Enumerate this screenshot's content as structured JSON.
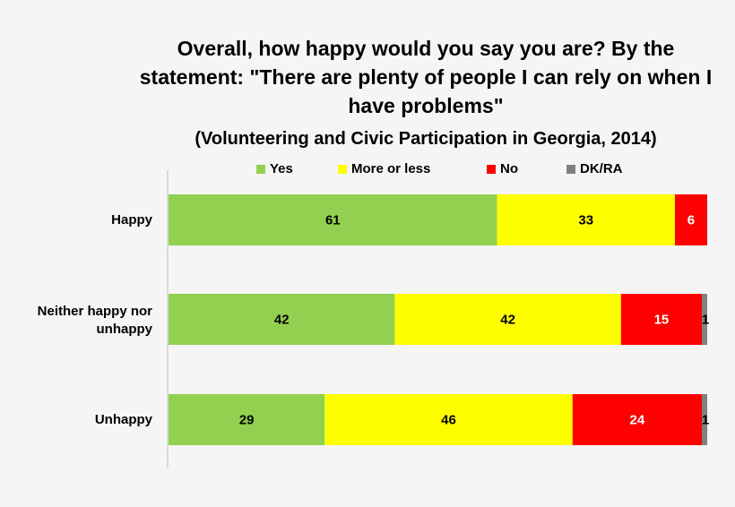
{
  "chart_data": {
    "type": "bar",
    "orientation": "horizontal",
    "stacked": true,
    "title": "Overall, how happy would you say you are? By the statement: \"There are plenty of people I can rely on when I have problems\"",
    "subtitle": "(Volunteering and Civic Participation in Georgia, 2014)",
    "categories": [
      "Happy",
      "Neither happy nor unhappy",
      "Unhappy"
    ],
    "series": [
      {
        "name": "Yes",
        "color": "#92d050",
        "label_color": "#000000",
        "values": [
          61,
          42,
          29
        ]
      },
      {
        "name": "More or less",
        "color": "#ffff00",
        "label_color": "#000000",
        "values": [
          33,
          42,
          46
        ]
      },
      {
        "name": "No",
        "color": "#ff0000",
        "label_color": "#ffffff",
        "values": [
          6,
          15,
          24
        ]
      },
      {
        "name": "DK/RA",
        "color": "#808080",
        "label_color": "#000000",
        "values": [
          null,
          1,
          1
        ]
      }
    ],
    "xlim": [
      0,
      100
    ],
    "grid": false,
    "legend_position": "top"
  }
}
